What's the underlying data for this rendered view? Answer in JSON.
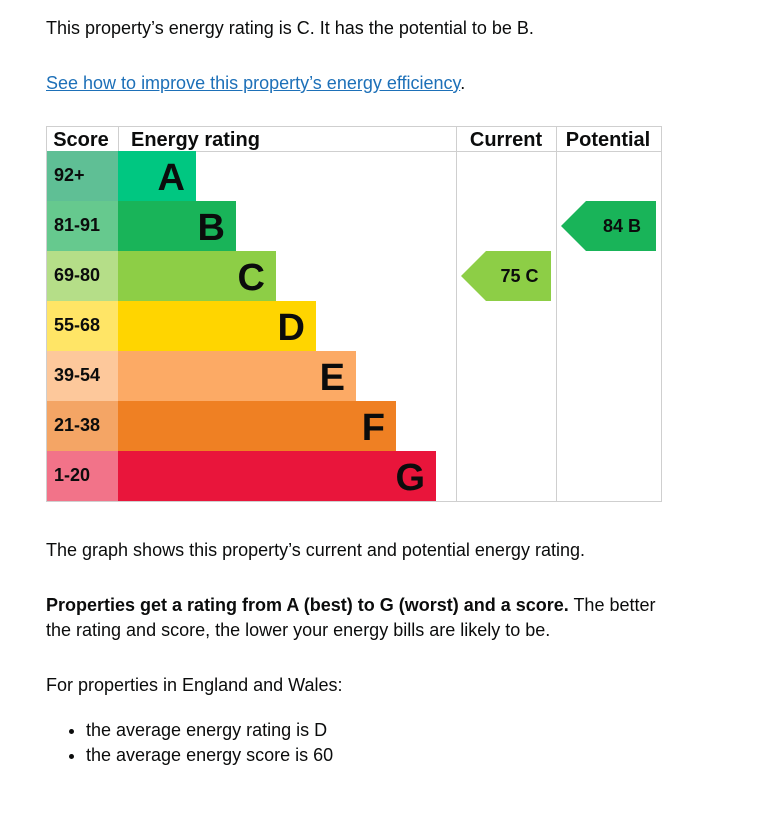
{
  "intro": {
    "text": "This property’s energy rating is C. It has the potential to be B.",
    "link_text": "See how to improve this property’s energy efficiency",
    "link_suffix": "."
  },
  "chart_data": {
    "type": "bar",
    "columns": {
      "score": "Score",
      "energy_rating": "Energy rating",
      "current": "Current",
      "potential": "Potential"
    },
    "bands": [
      {
        "band": "A",
        "range": "92+",
        "color": "#008054",
        "range_color": "#5fbf95",
        "bar_color": "#00c781"
      },
      {
        "band": "B",
        "range": "81-91",
        "color": "#19b459",
        "range_color": "#66c98e",
        "bar_color": "#19b459"
      },
      {
        "band": "C",
        "range": "69-80",
        "color": "#8dce46",
        "range_color": "#b5de88",
        "bar_color": "#8dce46"
      },
      {
        "band": "D",
        "range": "55-68",
        "color": "#ffd500",
        "range_color": "#ffe566",
        "bar_color": "#ffd500"
      },
      {
        "band": "E",
        "range": "39-54",
        "color": "#fcaa65",
        "range_color": "#fdc89b",
        "bar_color": "#fcaa65"
      },
      {
        "band": "F",
        "range": "21-38",
        "color": "#ef8023",
        "range_color": "#f4a565",
        "bar_color": "#ef8023"
      },
      {
        "band": "G",
        "range": "1-20",
        "color": "#e9153b",
        "range_color": "#f27389",
        "bar_color": "#e9153b"
      }
    ],
    "current": {
      "score": 75,
      "band": "C",
      "label": "75 C",
      "color": "#8dce46"
    },
    "potential": {
      "score": 84,
      "band": "B",
      "label": "84 B",
      "color": "#19b459"
    }
  },
  "after_chart": {
    "graph_note": "The graph shows this property’s current and potential energy rating.",
    "rating_bold": "Properties get a rating from A (best) to G (worst) and a score.",
    "rating_rest_line1": "The better",
    "rating_rest_line2": "the rating and score, the lower your energy bills are likely to be.",
    "england_wales": "For properties in England and Wales:",
    "bullets": [
      "the average energy rating is D",
      "the average energy score is 60"
    ]
  }
}
